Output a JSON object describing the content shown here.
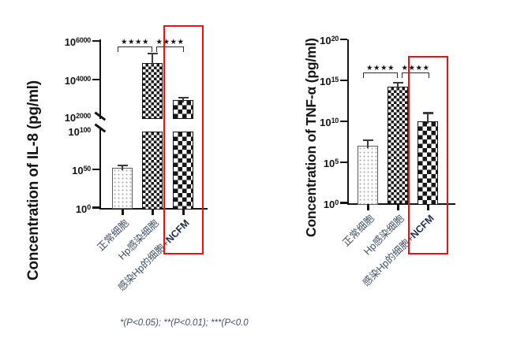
{
  "colors": {
    "ink": "#141414",
    "highlight_red": "#fb0a0a",
    "xlabel": "#3d4f66",
    "xlabel_bold": "#1c2b4d",
    "footnote": "#3f5168",
    "error_bar": "#3a3a3a"
  },
  "footnote": "*(P<0.05); **(P<0.01); ***(P<0.0",
  "chart_data": [
    {
      "type": "bar",
      "title": "",
      "ylabel": "Concentration of IL-8 (pg/ml)",
      "xlabel": "",
      "y_scale": "log10 exponents, broken axis (break between 10^100 and 10^2000)",
      "ytick_labels": [
        "10^0",
        "10^50",
        "10^100",
        "10^2000",
        "10^4000",
        "10^6000"
      ],
      "categories": [
        "正常细胞",
        "Hp感染细胞",
        "感染Hp的细胞+NCFM"
      ],
      "bold_suffix": "NCFM",
      "values_exp": [
        52,
        4850,
        2900
      ],
      "error_plus_exp": [
        3,
        500,
        130
      ],
      "bar_patterns": [
        "dots",
        "fine-checker",
        "coarse-checker"
      ],
      "significance": [
        {
          "between": [
            "正常细胞",
            "Hp感染细胞"
          ],
          "stars": "★★★★"
        },
        {
          "between": [
            "Hp感染细胞",
            "感染Hp的细胞+NCFM"
          ],
          "stars": "★★★★"
        }
      ],
      "highlighted_category": "感染Hp的细胞+NCFM",
      "legend": "none",
      "grid": false
    },
    {
      "type": "bar",
      "title": "",
      "ylabel": "Concentration of TNF-α (pg/ml)",
      "xlabel": "",
      "y_scale": "log10 exponents, 10^0 to 10^20",
      "ytick_labels": [
        "10^0",
        "10^5",
        "10^10",
        "10^15",
        "10^20"
      ],
      "categories": [
        "正常细胞",
        "Hp感染细胞",
        "感染Hp的细胞+NCFM"
      ],
      "bold_suffix": "NCFM",
      "values_exp": [
        7.0,
        14.2,
        10.0
      ],
      "error_plus_exp": [
        0.7,
        0.5,
        1.0
      ],
      "bar_patterns": [
        "dots",
        "fine-checker",
        "coarse-checker"
      ],
      "significance": [
        {
          "between": [
            "正常细胞",
            "Hp感染细胞"
          ],
          "stars": "★★★★"
        },
        {
          "between": [
            "Hp感染细胞",
            "感染Hp的细胞+NCFM"
          ],
          "stars": "★★★★"
        }
      ],
      "highlighted_category": "感染Hp的细胞+NCFM",
      "legend": "none",
      "grid": false
    }
  ]
}
